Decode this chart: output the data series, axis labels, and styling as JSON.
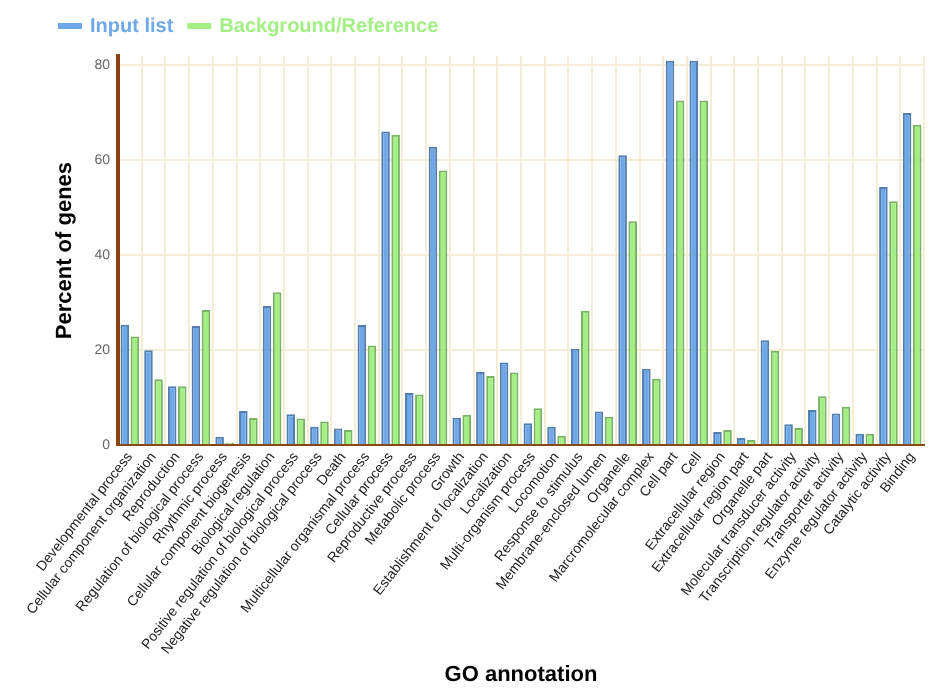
{
  "chart_data": {
    "type": "bar",
    "xlabel": "GO annotation",
    "ylabel": "Percent of genes",
    "categories": [
      "Developmental process",
      "Cellular component organization",
      "Reproduction",
      "Regulation of biological process",
      "Rhythmic process",
      "Cellular component biogenesis",
      "Biological regulation",
      "Positive regulation of biological process",
      "Negative regulation of biological process",
      "Death",
      "Multicellular organismal process",
      "Cellular process",
      "Reproductive process",
      "Metabolic process",
      "Growth",
      "Establishment of localization",
      "Localization",
      "Multi-organism process",
      "Locomotion",
      "Response to stimulus",
      "Membrane-enclosed lumen",
      "Organelle",
      "Marcromolecular complex",
      "Cell part",
      "Cell",
      "Extracellular region",
      "Extracellular region part",
      "Organelle part",
      "Molecular transducer activity",
      "Transcription regulator activity",
      "Transporter activity",
      "Enzyme regulator activity",
      "Catalytic activity",
      "Binding"
    ],
    "series": [
      {
        "name": "Input list",
        "color": "#6fa8e8",
        "values": [
          25.4,
          20,
          12.4,
          25.1,
          1.8,
          7.2,
          29.3,
          6.5,
          3.9,
          3.5,
          25.3,
          66.1,
          11,
          62.9,
          5.8,
          15.4,
          17.4,
          4.6,
          3.9,
          20.3,
          7.1,
          61.1,
          16.1,
          81,
          81,
          2.8,
          1.5,
          22.1,
          4.4,
          7.4,
          6.7,
          2.4,
          54.4,
          70
        ]
      },
      {
        "name": "Background/Reference",
        "color": "#a3ef84",
        "values": [
          22.9,
          13.9,
          12.4,
          28.5,
          0.5,
          5.7,
          32.2,
          5.6,
          5,
          3.2,
          21,
          65.4,
          10.7,
          57.9,
          6.4,
          14.6,
          15.3,
          7.8,
          2,
          28.3,
          6,
          47.2,
          14,
          72.6,
          72.6,
          3.2,
          1.1,
          19.9,
          3.6,
          10.3,
          8.1,
          2.4,
          51.4,
          67.5
        ]
      }
    ],
    "ylim": [
      0,
      82
    ],
    "yticks": [
      0,
      20,
      40,
      60,
      80
    ],
    "grid": true,
    "legend": "top left"
  }
}
